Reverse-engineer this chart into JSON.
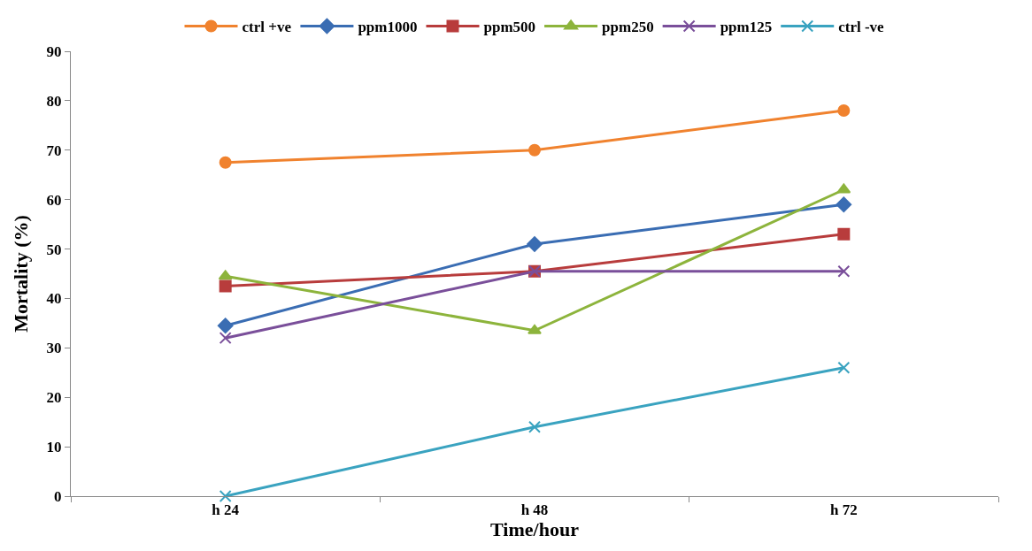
{
  "chart_data": {
    "type": "line",
    "xlabel": "Time/hour",
    "ylabel": "Mortality (%)",
    "categories": [
      "h 24",
      "h 48",
      "h 72"
    ],
    "ylim": [
      0,
      90
    ],
    "yticks": [
      0,
      10,
      20,
      30,
      40,
      50,
      60,
      70,
      80,
      90
    ],
    "grid": false,
    "legend": "top",
    "series": [
      {
        "name": "ctrl +ve",
        "color": "#f0822e",
        "marker": "circle",
        "values": [
          67.5,
          70,
          78
        ]
      },
      {
        "name": "ppm1000",
        "color": "#3a6db3",
        "marker": "diamond",
        "values": [
          34.5,
          51,
          59
        ]
      },
      {
        "name": "ppm500",
        "color": "#b83c3c",
        "marker": "square",
        "values": [
          42.5,
          45.5,
          53
        ]
      },
      {
        "name": "ppm250",
        "color": "#8db43c",
        "marker": "triangle",
        "values": [
          44.5,
          33.5,
          62
        ]
      },
      {
        "name": "ppm125",
        "color": "#7a4f9a",
        "marker": "cross",
        "values": [
          32,
          45.5,
          45.5
        ]
      },
      {
        "name": "ctrl -ve",
        "color": "#3aa3c0",
        "marker": "cross",
        "values": [
          0,
          14,
          26
        ]
      }
    ]
  }
}
